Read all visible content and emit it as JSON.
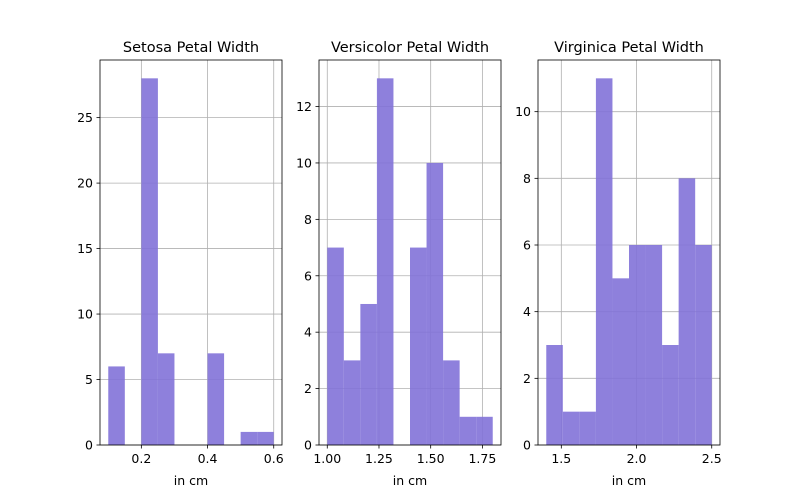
{
  "colors": {
    "bar": "#8272d8",
    "grid": "#b0b0b0",
    "axis": "#000000"
  },
  "chart_data": [
    {
      "type": "bar",
      "title": "Setosa Petal Width",
      "xlabel": "in cm",
      "ylabel": "",
      "grid": true,
      "xlim": [
        0.075,
        0.625
      ],
      "ylim": [
        0,
        29.4
      ],
      "xticks": [
        0.2,
        0.4,
        0.6
      ],
      "xtick_labels": [
        "0.2",
        "0.4",
        "0.6"
      ],
      "yticks": [
        0,
        5,
        10,
        15,
        20,
        25
      ],
      "ytick_labels": [
        "0",
        "5",
        "10",
        "15",
        "20",
        "25"
      ],
      "bins": [
        {
          "x0": 0.1,
          "x1": 0.15,
          "count": 6
        },
        {
          "x0": 0.2,
          "x1": 0.25,
          "count": 28
        },
        {
          "x0": 0.25,
          "x1": 0.3,
          "count": 7
        },
        {
          "x0": 0.4,
          "x1": 0.45,
          "count": 7
        },
        {
          "x0": 0.5,
          "x1": 0.55,
          "count": 1
        },
        {
          "x0": 0.55,
          "x1": 0.6,
          "count": 1
        }
      ]
    },
    {
      "type": "bar",
      "title": "Versicolor Petal Width",
      "xlabel": "in cm",
      "ylabel": "",
      "grid": true,
      "xlim": [
        0.96,
        1.84
      ],
      "ylim": [
        0,
        13.65
      ],
      "xticks": [
        1.0,
        1.25,
        1.5,
        1.75
      ],
      "xtick_labels": [
        "1.00",
        "1.25",
        "1.50",
        "1.75"
      ],
      "yticks": [
        0,
        2,
        4,
        6,
        8,
        10,
        12
      ],
      "ytick_labels": [
        "0",
        "2",
        "4",
        "6",
        "8",
        "10",
        "12"
      ],
      "bins": [
        {
          "x0": 1.0,
          "x1": 1.08,
          "count": 7
        },
        {
          "x0": 1.08,
          "x1": 1.16,
          "count": 3
        },
        {
          "x0": 1.16,
          "x1": 1.24,
          "count": 5
        },
        {
          "x0": 1.24,
          "x1": 1.32,
          "count": 13
        },
        {
          "x0": 1.4,
          "x1": 1.48,
          "count": 7
        },
        {
          "x0": 1.48,
          "x1": 1.56,
          "count": 10
        },
        {
          "x0": 1.56,
          "x1": 1.64,
          "count": 3
        },
        {
          "x0": 1.64,
          "x1": 1.72,
          "count": 1
        },
        {
          "x0": 1.72,
          "x1": 1.8,
          "count": 1
        }
      ]
    },
    {
      "type": "bar",
      "title": "Virginica Petal Width",
      "xlabel": "in cm",
      "ylabel": "",
      "grid": true,
      "xlim": [
        1.345,
        2.555
      ],
      "ylim": [
        0,
        11.55
      ],
      "xticks": [
        1.5,
        2.0,
        2.5
      ],
      "xtick_labels": [
        "1.5",
        "2.0",
        "2.5"
      ],
      "yticks": [
        0,
        2,
        4,
        6,
        8,
        10
      ],
      "ytick_labels": [
        "0",
        "2",
        "4",
        "6",
        "8",
        "10"
      ],
      "bins": [
        {
          "x0": 1.4,
          "x1": 1.51,
          "count": 3
        },
        {
          "x0": 1.51,
          "x1": 1.62,
          "count": 1
        },
        {
          "x0": 1.62,
          "x1": 1.73,
          "count": 1
        },
        {
          "x0": 1.73,
          "x1": 1.84,
          "count": 11
        },
        {
          "x0": 1.84,
          "x1": 1.95,
          "count": 5
        },
        {
          "x0": 1.95,
          "x1": 2.06,
          "count": 6
        },
        {
          "x0": 2.06,
          "x1": 2.17,
          "count": 6
        },
        {
          "x0": 2.17,
          "x1": 2.28,
          "count": 3
        },
        {
          "x0": 2.28,
          "x1": 2.39,
          "count": 8
        },
        {
          "x0": 2.39,
          "x1": 2.5,
          "count": 6
        }
      ]
    }
  ]
}
